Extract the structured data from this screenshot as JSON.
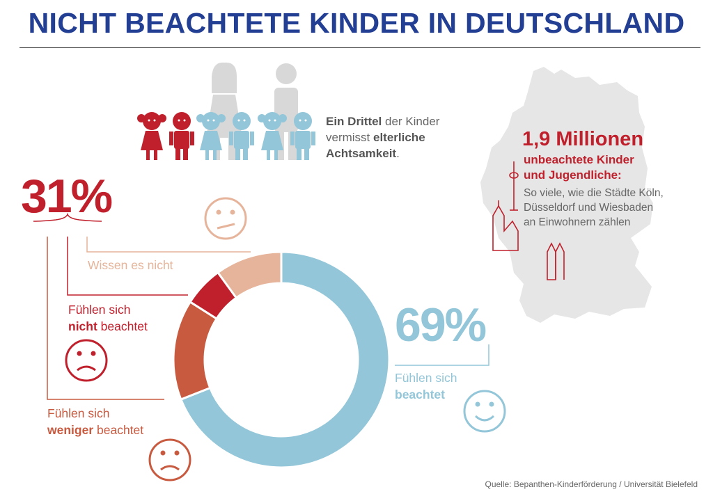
{
  "title": "NICHT BEACHTETE KINDER IN DEUTSCHLAND",
  "family_text": {
    "part1_bold": "Ein Drittel",
    "part1_rest": " der Kinder",
    "part2_plain": "vermisst ",
    "part2_bold": "elterliche",
    "part3_bold": "Achtsamkeit",
    "part3_rest": "."
  },
  "percent_left": "31%",
  "percent_right": "69%",
  "labels": {
    "wissen": "Wissen es nicht",
    "nicht_line1": "Fühlen sich",
    "nicht_bold": "nicht",
    "nicht_rest": " beachtet",
    "weniger_line1": "Fühlen sich",
    "weniger_bold": "weniger",
    "weniger_rest": " beachtet",
    "fuehlen_line1": "Fühlen sich",
    "fuehlen_bold": "beachtet"
  },
  "map_info": {
    "title": "1,9 Millionen",
    "subtitle_line1": "unbeachtete Kinder",
    "subtitle_line2": "und Jugendliche:",
    "body_line1": "So viele, wie die Städte Köln,",
    "body_line2": "Düsseldorf und Wiesbaden",
    "body_line3": "an Einwohnern zählen"
  },
  "source": "Quelle: Bepanthen-Kinderförderung / Universität Bielefeld",
  "colors": {
    "title": "#233f94",
    "red": "#c0202c",
    "orange": "#c85a40",
    "peach": "#e6b49a",
    "blue": "#92c6d8",
    "grey": "#e6e6e6"
  },
  "chart_data": {
    "type": "pie",
    "categories": [
      "Fühlen sich beachtet",
      "Fühlen sich weniger beachtet",
      "Fühlen sich nicht beachtet",
      "Wissen es nicht"
    ],
    "values": [
      69,
      15,
      6,
      10
    ],
    "colors": [
      "#92c6d8",
      "#c85a40",
      "#c0202c",
      "#e6b49a"
    ]
  }
}
